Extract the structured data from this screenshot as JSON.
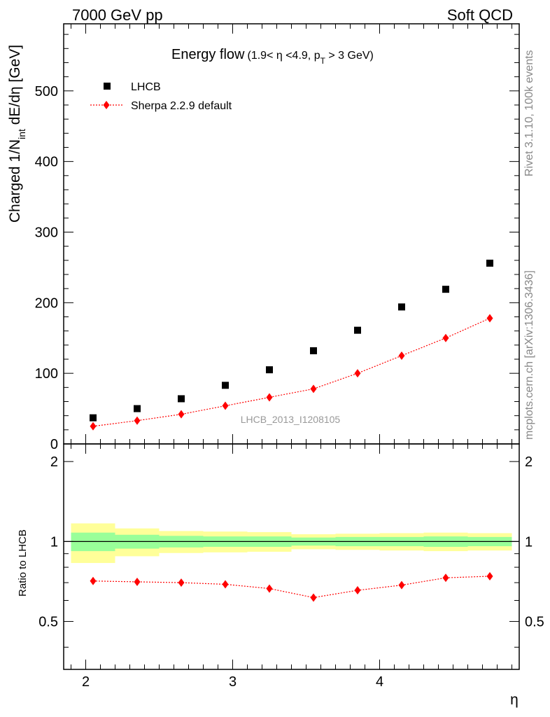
{
  "header": {
    "left": "7000 GeV pp",
    "right": "Soft QCD"
  },
  "side_labels": {
    "rivet": "Rivet 3.1.10,  100k events",
    "mcplots": "mcplots.cern.ch [arXiv:1306.3436]"
  },
  "chart_data": [
    {
      "type": "scatter",
      "title": "Energy flow",
      "subtitle_parts": [
        "(1.9< ",
        "η",
        " <4.9, p",
        "T",
        " > 3 GeV)"
      ],
      "ylabel_parts": [
        "Charged 1/N",
        "int",
        " dE/dη [GeV]"
      ],
      "watermark": "LHCB_2013_I1208105",
      "xlim": [
        1.85,
        4.95
      ],
      "ylim": [
        0,
        595
      ],
      "x_ticks": [
        2,
        3,
        4
      ],
      "y_ticks": [
        0,
        100,
        200,
        300,
        400,
        500
      ],
      "legend_position": "top-left",
      "series": [
        {
          "name": "LHCB",
          "color": "#000000",
          "marker": "square",
          "x": [
            2.05,
            2.35,
            2.65,
            2.95,
            3.25,
            3.55,
            3.85,
            4.15,
            4.45,
            4.75
          ],
          "y": [
            37,
            50,
            64,
            83,
            105,
            132,
            161,
            194,
            219,
            256
          ]
        },
        {
          "name": "Sherpa 2.2.9 default",
          "color": "#ff0000",
          "marker": "diamond",
          "line": "dotted",
          "x": [
            2.05,
            2.35,
            2.65,
            2.95,
            3.25,
            3.55,
            3.85,
            4.15,
            4.45,
            4.75
          ],
          "y": [
            25,
            33,
            42,
            54,
            66,
            78,
            100,
            125,
            150,
            178
          ],
          "yerr": [
            1.5,
            1.5,
            2,
            2,
            2,
            2,
            2.5,
            3,
            3.5,
            5
          ]
        }
      ]
    },
    {
      "type": "scatter",
      "ylabel": "Ratio to LHCB",
      "xlabel": "η",
      "xlim": [
        1.85,
        4.95
      ],
      "ylim": [
        0.33,
        2.33
      ],
      "x_ticks": [
        2,
        3,
        4
      ],
      "y_ticks": [
        0.5,
        1,
        2
      ],
      "reference_line": 1,
      "bands": [
        {
          "x0": 1.9,
          "x1": 2.2,
          "green": [
            0.92,
            1.08
          ],
          "yellow": [
            0.83,
            1.17
          ]
        },
        {
          "x0": 2.2,
          "x1": 2.5,
          "green": [
            0.94,
            1.06
          ],
          "yellow": [
            0.88,
            1.12
          ]
        },
        {
          "x0": 2.5,
          "x1": 2.8,
          "green": [
            0.95,
            1.05
          ],
          "yellow": [
            0.905,
            1.095
          ]
        },
        {
          "x0": 2.8,
          "x1": 3.1,
          "green": [
            0.955,
            1.045
          ],
          "yellow": [
            0.91,
            1.09
          ]
        },
        {
          "x0": 3.1,
          "x1": 3.4,
          "green": [
            0.955,
            1.045
          ],
          "yellow": [
            0.915,
            1.085
          ]
        },
        {
          "x0": 3.4,
          "x1": 3.7,
          "green": [
            0.965,
            1.035
          ],
          "yellow": [
            0.935,
            1.065
          ]
        },
        {
          "x0": 3.7,
          "x1": 4.0,
          "green": [
            0.96,
            1.04
          ],
          "yellow": [
            0.93,
            1.07
          ]
        },
        {
          "x0": 4.0,
          "x1": 4.3,
          "green": [
            0.96,
            1.04
          ],
          "yellow": [
            0.925,
            1.075
          ]
        },
        {
          "x0": 4.3,
          "x1": 4.6,
          "green": [
            0.955,
            1.045
          ],
          "yellow": [
            0.92,
            1.08
          ]
        },
        {
          "x0": 4.6,
          "x1": 4.9,
          "green": [
            0.96,
            1.04
          ],
          "yellow": [
            0.925,
            1.075
          ]
        }
      ],
      "series": [
        {
          "name": "Sherpa 2.2.9 default",
          "color": "#ff0000",
          "marker": "diamond",
          "line": "dotted",
          "x": [
            2.05,
            2.35,
            2.65,
            2.95,
            3.25,
            3.55,
            3.85,
            4.15,
            4.45,
            4.75
          ],
          "y": [
            0.71,
            0.705,
            0.7,
            0.69,
            0.665,
            0.615,
            0.655,
            0.685,
            0.73,
            0.74
          ],
          "yerr": [
            0.01,
            0.01,
            0.01,
            0.01,
            0.01,
            0.01,
            0.01,
            0.012,
            0.016,
            0.02
          ]
        }
      ]
    }
  ]
}
